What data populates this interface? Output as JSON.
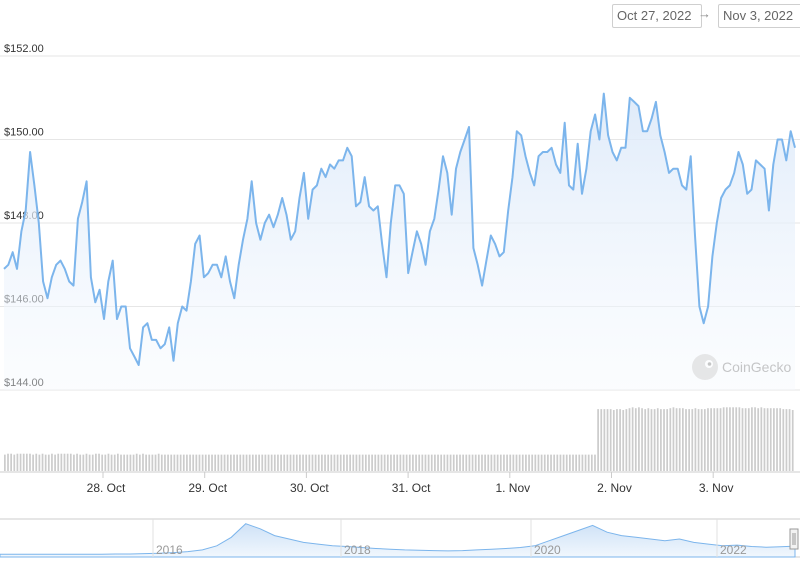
{
  "range_selector": {
    "from": "Oct 27, 2022",
    "arrow": "→",
    "to": "Nov 3, 2022"
  },
  "watermark": {
    "text": "CoinGecko"
  },
  "colors": {
    "line": "#7cb5ec",
    "area_top": "#e3eefb",
    "volume": "#cccccc",
    "grid": "#e6e6e6"
  },
  "chart_data": {
    "type": "area",
    "ylim": [
      144,
      152
    ],
    "y_ticks": [
      {
        "value": 144,
        "label": "$144.00"
      },
      {
        "value": 146,
        "label": "$146.00"
      },
      {
        "value": 148,
        "label": "$148.00"
      },
      {
        "value": 150,
        "label": "$150.00"
      },
      {
        "value": 152,
        "label": "$152.00"
      }
    ],
    "x_ticks": [
      {
        "value": 1,
        "label": "28. Oct"
      },
      {
        "value": 2,
        "label": "29. Oct"
      },
      {
        "value": 3,
        "label": "30. Oct"
      },
      {
        "value": 4,
        "label": "31. Oct"
      },
      {
        "value": 5,
        "label": "1. Nov"
      },
      {
        "value": 6,
        "label": "2. Nov"
      },
      {
        "value": 7,
        "label": "3. Nov"
      }
    ],
    "x_range": [
      -0.2,
      6.84
    ],
    "series": [
      {
        "values": [
          146.9,
          147.0,
          147.3,
          146.9,
          147.8,
          148.3,
          149.7,
          148.9,
          148.0,
          146.6,
          146.2,
          146.7,
          147.0,
          147.1,
          146.9,
          146.6,
          146.5,
          148.1,
          148.5,
          149.0,
          146.7,
          146.1,
          146.4,
          145.7,
          146.6,
          147.1,
          145.7,
          146.0,
          146.0,
          145.0,
          144.8,
          144.6,
          145.5,
          145.6,
          145.2,
          145.2,
          145.0,
          145.1,
          145.5,
          144.7,
          145.6,
          146.0,
          145.9,
          146.6,
          147.5,
          147.7,
          146.7,
          146.8,
          147.0,
          147.0,
          146.7,
          147.2,
          146.6,
          146.2,
          147.0,
          147.6,
          148.1,
          149.0,
          148.0,
          147.6,
          148.0,
          148.2,
          147.9,
          148.2,
          148.6,
          148.2,
          147.6,
          147.8,
          148.6,
          149.2,
          148.1,
          148.8,
          148.9,
          149.3,
          149.1,
          149.4,
          149.3,
          149.5,
          149.5,
          149.8,
          149.6,
          148.4,
          148.5,
          149.1,
          148.4,
          148.3,
          148.4,
          147.5,
          146.7,
          148.0,
          148.9,
          148.9,
          148.7,
          146.8,
          147.3,
          147.8,
          147.5,
          147.0,
          147.8,
          148.1,
          148.8,
          149.6,
          149.2,
          148.2,
          149.3,
          149.7,
          150.0,
          150.3,
          147.4,
          147.0,
          146.5,
          147.1,
          147.7,
          147.5,
          147.2,
          147.3,
          148.3,
          149.1,
          150.2,
          150.1,
          149.6,
          149.2,
          148.9,
          149.6,
          149.7,
          149.7,
          149.8,
          149.4,
          149.2,
          150.4,
          148.9,
          148.8,
          149.9,
          148.7,
          149.3,
          150.2,
          150.6,
          150.0,
          151.1,
          150.1,
          149.7,
          149.5,
          149.8,
          149.8,
          151.0,
          150.9,
          150.8,
          150.2,
          150.2,
          150.5,
          150.9,
          150.1,
          149.7,
          149.2,
          149.3,
          149.3,
          148.9,
          148.8,
          149.6,
          147.7,
          146.0,
          145.6,
          146.0,
          147.2,
          148.0,
          148.6,
          148.8,
          148.9,
          149.2,
          149.7,
          149.4,
          148.7,
          148.8,
          149.5,
          149.4,
          149.3,
          148.3,
          149.4,
          150.0,
          150.0,
          149.5,
          150.2,
          149.8
        ]
      }
    ],
    "volume_values": [
      18,
      19,
      19,
      18,
      19,
      19,
      19,
      19,
      19,
      18,
      19,
      18,
      19,
      18,
      18,
      19,
      18,
      19,
      19,
      19,
      19,
      19,
      18,
      19,
      18,
      18,
      19,
      18,
      18,
      19,
      19,
      18,
      18,
      19,
      18,
      18,
      19,
      18,
      18,
      18,
      18,
      18,
      19,
      18,
      19,
      18,
      18,
      18,
      18,
      19,
      18,
      18,
      18,
      18,
      18,
      18,
      18,
      18,
      18,
      18,
      18,
      18,
      18,
      18,
      18,
      18,
      18,
      18,
      18,
      18,
      18,
      18,
      18,
      18,
      18,
      18,
      18,
      18,
      18,
      18,
      18,
      18,
      18,
      18,
      18,
      18,
      18,
      18,
      18,
      18,
      18,
      18,
      18,
      18,
      18,
      18,
      18,
      18,
      18,
      18,
      18,
      18,
      18,
      18,
      18,
      18,
      18,
      18,
      18,
      18,
      18,
      18,
      18,
      18,
      18,
      18,
      18,
      18,
      18,
      18,
      18,
      18,
      18,
      18,
      18,
      18,
      18,
      18,
      18,
      18,
      18,
      18,
      18,
      18,
      18,
      18,
      18,
      18,
      18,
      18,
      18,
      18,
      18,
      18,
      18,
      18,
      18,
      18,
      18,
      18,
      18,
      18,
      18,
      18,
      18,
      18,
      18,
      18,
      18,
      18,
      18,
      18,
      18,
      18,
      18,
      18,
      18,
      18,
      18,
      18,
      18,
      18,
      18,
      18,
      18,
      18,
      18,
      18,
      18,
      18,
      18,
      18,
      18,
      18,
      18,
      18,
      18,
      18,
      18
    ],
    "volume_high_values": [
      68,
      68,
      68,
      68,
      68,
      67,
      68,
      68,
      67,
      68,
      69,
      70,
      69,
      70,
      69,
      68,
      69,
      68,
      68,
      69,
      68,
      68,
      68,
      69,
      70,
      69,
      69,
      69,
      68,
      68,
      68,
      69,
      68,
      68,
      68,
      69,
      69,
      69,
      69,
      69,
      70,
      70,
      70,
      70,
      70,
      70,
      69,
      69,
      69,
      70,
      70,
      69,
      70,
      69,
      69,
      69,
      69,
      69,
      69,
      68,
      68,
      68,
      67
    ],
    "navigator": {
      "labels": [
        "2016",
        "2018",
        "2020",
        "2022"
      ],
      "values": [
        0.05,
        0.05,
        0.05,
        0.05,
        0.05,
        0.05,
        0.05,
        0.05,
        0.06,
        0.06,
        0.07,
        0.08,
        0.1,
        0.13,
        0.18,
        0.3,
        0.55,
        0.95,
        0.8,
        0.6,
        0.5,
        0.4,
        0.35,
        0.3,
        0.28,
        0.25,
        0.22,
        0.2,
        0.18,
        0.17,
        0.16,
        0.15,
        0.16,
        0.18,
        0.2,
        0.22,
        0.25,
        0.3,
        0.45,
        0.6,
        0.75,
        0.9,
        0.7,
        0.6,
        0.55,
        0.5,
        0.45,
        0.5,
        0.4,
        0.35,
        0.3,
        0.32,
        0.28,
        0.26,
        0.27,
        0.29
      ]
    }
  }
}
